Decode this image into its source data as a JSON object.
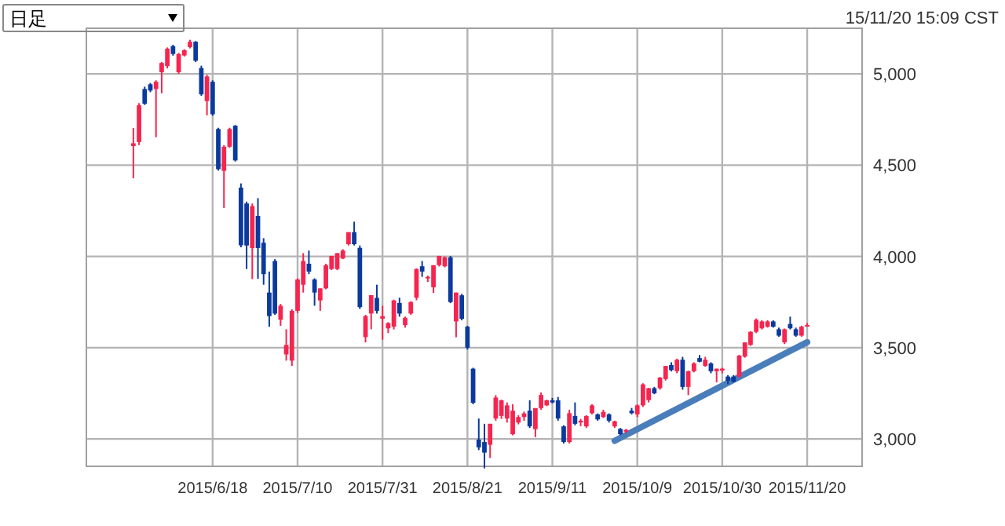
{
  "chart_data": {
    "type": "candlestick",
    "annotations": [
      "日足",
      "15/11/20 15:09 CST"
    ],
    "categories": [
      null,
      null,
      null,
      null,
      null,
      null,
      null,
      null,
      null,
      null,
      null,
      null,
      null,
      null,
      "2015/6/18",
      null,
      null,
      null,
      null,
      null,
      null,
      null,
      null,
      null,
      null,
      null,
      null,
      null,
      null,
      "2015/7/10",
      null,
      null,
      null,
      null,
      null,
      null,
      null,
      null,
      null,
      null,
      null,
      null,
      null,
      null,
      "2015/7/31",
      null,
      null,
      null,
      null,
      null,
      null,
      null,
      null,
      null,
      null,
      null,
      null,
      null,
      null,
      "2015/8/21",
      null,
      null,
      null,
      null,
      null,
      null,
      null,
      null,
      null,
      null,
      null,
      null,
      null,
      null,
      "2015/9/11",
      null,
      null,
      null,
      null,
      null,
      null,
      null,
      null,
      null,
      null,
      null,
      null,
      null,
      null,
      "2015/10/9",
      null,
      null,
      null,
      null,
      null,
      null,
      null,
      null,
      null,
      null,
      null,
      null,
      null,
      null,
      "2015/10/30",
      null,
      null,
      null,
      null,
      null,
      null,
      null,
      null,
      null,
      null,
      null,
      null,
      null,
      null,
      "2015/11/20"
    ],
    "ohlc": [
      [
        4605,
        4704,
        4428,
        4620
      ],
      [
        4627,
        4840,
        4610,
        4828
      ],
      [
        4917,
        4930,
        4830,
        4836
      ],
      [
        4943,
        4950,
        4900,
        4909
      ],
      [
        4917,
        4965,
        4653,
        4957
      ],
      [
        5009,
        5065,
        4894,
        5060
      ],
      [
        5043,
        5145,
        5030,
        5138
      ],
      [
        5152,
        5160,
        5100,
        5109
      ],
      [
        5009,
        5115,
        5000,
        5109
      ],
      [
        5101,
        5135,
        5095,
        5130
      ],
      [
        5147,
        5187,
        5140,
        5176
      ],
      [
        5176,
        5180,
        5065,
        5072
      ],
      [
        5032,
        5045,
        4880,
        4888
      ],
      [
        4851,
        4995,
        4773,
        4986
      ],
      [
        4957,
        4965,
        4770,
        4779
      ],
      [
        4698,
        4705,
        4470,
        4478
      ],
      [
        4469,
        4610,
        4265,
        4601
      ],
      [
        4601,
        4705,
        4595,
        4698
      ],
      [
        4716,
        4720,
        4520,
        4526
      ],
      [
        4377,
        4400,
        4050,
        4061
      ],
      [
        4290,
        4300,
        3931,
        4060
      ],
      [
        4046,
        4290,
        3876,
        4276
      ],
      [
        4222,
        4319,
        3877,
        4046
      ],
      [
        4075,
        4100,
        3845,
        3903
      ],
      [
        3802,
        3917,
        3615,
        3673
      ],
      [
        3975,
        3985,
        3680,
        3687
      ],
      [
        3653,
        3740,
        3620,
        3730
      ],
      [
        3463,
        3601,
        3429,
        3515
      ],
      [
        3429,
        3710,
        3400,
        3702
      ],
      [
        3702,
        3880,
        3690,
        3874
      ],
      [
        3845,
        4018,
        3802,
        3975
      ],
      [
        3960,
        4032,
        3903,
        3917
      ],
      [
        3874,
        3880,
        3730,
        3802
      ],
      [
        3759,
        3825,
        3702,
        3825
      ],
      [
        3825,
        3960,
        3820,
        3952
      ],
      [
        3931,
        4003,
        3925,
        4003
      ],
      [
        3931,
        4018,
        3925,
        4018
      ],
      [
        3989,
        4040,
        3985,
        4032
      ],
      [
        4067,
        4133,
        4060,
        4133
      ],
      [
        4133,
        4190,
        4060,
        4067
      ],
      [
        4047,
        4060,
        3712,
        3722
      ],
      [
        3558,
        3680,
        3529,
        3673
      ],
      [
        3687,
        3788,
        3601,
        3788
      ],
      [
        3773,
        3845,
        3687,
        3702
      ],
      [
        3659,
        3730,
        3544,
        3673
      ],
      [
        3606,
        3640,
        3580,
        3635
      ],
      [
        3615,
        3763,
        3600,
        3759
      ],
      [
        3745,
        3774,
        3670,
        3687
      ],
      [
        3624,
        3670,
        3610,
        3664
      ],
      [
        3687,
        3755,
        3680,
        3750
      ],
      [
        3774,
        3935,
        3760,
        3931
      ],
      [
        3946,
        3975,
        3888,
        3917
      ],
      [
        3880,
        3895,
        3860,
        3888
      ],
      [
        3831,
        3952,
        3800,
        3952
      ],
      [
        3952,
        4003,
        3945,
        4003
      ],
      [
        3946,
        4000,
        3940,
        3995
      ],
      [
        3995,
        4003,
        3744,
        3750
      ],
      [
        3644,
        3802,
        3557,
        3802
      ],
      [
        3787,
        3795,
        3650,
        3658
      ],
      [
        3615,
        3620,
        3490,
        3500
      ],
      [
        3385,
        3390,
        3190,
        3198
      ],
      [
        2997,
        3112,
        2939,
        2954
      ],
      [
        2983,
        3083,
        2839,
        2925
      ],
      [
        2968,
        3083,
        2896,
        3083
      ],
      [
        3112,
        3240,
        3100,
        3227
      ],
      [
        3126,
        3215,
        3110,
        3212
      ],
      [
        3112,
        3200,
        3090,
        3184
      ],
      [
        3026,
        3190,
        3020,
        3155
      ],
      [
        3090,
        3130,
        3080,
        3120
      ],
      [
        3120,
        3150,
        3100,
        3140
      ],
      [
        3155,
        3212,
        3060,
        3069
      ],
      [
        3054,
        3169,
        3010,
        3169
      ],
      [
        3169,
        3255,
        3160,
        3241
      ],
      [
        3184,
        3215,
        3180,
        3212
      ],
      [
        3212,
        3225,
        3195,
        3200
      ],
      [
        3212,
        3230,
        3100,
        3112
      ],
      [
        3069,
        3075,
        2975,
        2983
      ],
      [
        2983,
        3160,
        2975,
        3141
      ],
      [
        3126,
        3200,
        3075,
        3083
      ],
      [
        3090,
        3110,
        3070,
        3100
      ],
      [
        3069,
        3130,
        3060,
        3126
      ],
      [
        3141,
        3190,
        3135,
        3184
      ],
      [
        3135,
        3140,
        3100,
        3107
      ],
      [
        3120,
        3160,
        3115,
        3148
      ],
      [
        3135,
        3140,
        3090,
        3100
      ],
      [
        3069,
        3100,
        3060,
        3097
      ],
      [
        3055,
        3060,
        3020,
        3026
      ],
      [
        3040,
        3055,
        3030,
        3050
      ],
      [
        3155,
        3170,
        3135,
        3141
      ],
      [
        3135,
        3190,
        3120,
        3184
      ],
      [
        3184,
        3305,
        3175,
        3299
      ],
      [
        3213,
        3280,
        3200,
        3278
      ],
      [
        3278,
        3285,
        3245,
        3250
      ],
      [
        3278,
        3340,
        3270,
        3336
      ],
      [
        3328,
        3400,
        3320,
        3400
      ],
      [
        3405,
        3420,
        3370,
        3377
      ],
      [
        3371,
        3440,
        3360,
        3434
      ],
      [
        3434,
        3450,
        3270,
        3285
      ],
      [
        3285,
        3375,
        3240,
        3371
      ],
      [
        3371,
        3420,
        3365,
        3414
      ],
      [
        3443,
        3460,
        3420,
        3423
      ],
      [
        3400,
        3450,
        3395,
        3434
      ],
      [
        3414,
        3420,
        3360,
        3371
      ],
      [
        3371,
        3385,
        3310,
        3385
      ],
      [
        3375,
        3390,
        3360,
        3385
      ],
      [
        3342,
        3350,
        3300,
        3319
      ],
      [
        3342,
        3350,
        3310,
        3314
      ],
      [
        3342,
        3460,
        3335,
        3457
      ],
      [
        3451,
        3530,
        3445,
        3529
      ],
      [
        3515,
        3590,
        3510,
        3587
      ],
      [
        3587,
        3660,
        3580,
        3653
      ],
      [
        3606,
        3650,
        3600,
        3644
      ],
      [
        3615,
        3650,
        3610,
        3644
      ],
      [
        3644,
        3650,
        3610,
        3615
      ],
      [
        3601,
        3610,
        3560,
        3566
      ],
      [
        3529,
        3605,
        3520,
        3601
      ],
      [
        3630,
        3670,
        3600,
        3606
      ],
      [
        3601,
        3610,
        3560,
        3566
      ],
      [
        3566,
        3620,
        3560,
        3615
      ],
      [
        3620,
        3635,
        3615,
        3624
      ]
    ],
    "colors": [
      "#f5254f",
      "#f5254f",
      "#0a3a9e",
      "#0a3a9e",
      "#f5254f",
      "#f5254f",
      "#f5254f",
      "#0a3a9e",
      "#f5254f",
      "#f5254f",
      "#f5254f",
      "#0a3a9e",
      "#0a3a9e",
      "#f5254f",
      "#0a3a9e",
      "#0a3a9e",
      "#f5254f",
      "#f5254f",
      "#0a3a9e",
      "#0a3a9e",
      "#0a3a9e",
      "#f5254f",
      "#0a3a9e",
      "#0a3a9e",
      "#0a3a9e",
      "#0a3a9e",
      "#f5254f",
      "#f5254f",
      "#f5254f",
      "#f5254f",
      "#f5254f",
      "#0a3a9e",
      "#0a3a9e",
      "#f5254f",
      "#f5254f",
      "#f5254f",
      "#f5254f",
      "#f5254f",
      "#f5254f",
      "#0a3a9e",
      "#0a3a9e",
      "#f5254f",
      "#f5254f",
      "#0a3a9e",
      "#f5254f",
      "#f5254f",
      "#f5254f",
      "#0a3a9e",
      "#f5254f",
      "#f5254f",
      "#f5254f",
      "#0a3a9e",
      "#f5254f",
      "#f5254f",
      "#f5254f",
      "#f5254f",
      "#0a3a9e",
      "#f5254f",
      "#0a3a9e",
      "#0a3a9e",
      "#0a3a9e",
      "#0a3a9e",
      "#0a3a9e",
      "#f5254f",
      "#f5254f",
      "#f5254f",
      "#f5254f",
      "#f5254f",
      "#f5254f",
      "#f5254f",
      "#0a3a9e",
      "#f5254f",
      "#f5254f",
      "#f5254f",
      "#0a3a9e",
      "#0a3a9e",
      "#0a3a9e",
      "#f5254f",
      "#0a3a9e",
      "#f5254f",
      "#f5254f",
      "#f5254f",
      "#0a3a9e",
      "#f5254f",
      "#0a3a9e",
      "#f5254f",
      "#0a3a9e",
      "#f5254f",
      "#0a3a9e",
      "#f5254f",
      "#f5254f",
      "#f5254f",
      "#0a3a9e",
      "#f5254f",
      "#f5254f",
      "#0a3a9e",
      "#f5254f",
      "#0a3a9e",
      "#f5254f",
      "#f5254f",
      "#0a3a9e",
      "#f5254f",
      "#0a3a9e",
      "#f5254f",
      "#f5254f",
      "#0a3a9e",
      "#0a3a9e",
      "#f5254f",
      "#f5254f",
      "#f5254f",
      "#f5254f",
      "#f5254f",
      "#f5254f",
      "#0a3a9e",
      "#0a3a9e",
      "#f5254f",
      "#0a3a9e",
      "#0a3a9e",
      "#f5254f",
      "#f5254f"
    ],
    "series": [
      {
        "type": "line",
        "color": "#4a7ebb",
        "values": [
          null,
          null,
          null,
          null,
          null,
          null,
          null,
          null,
          null,
          null,
          null,
          null,
          null,
          null,
          null,
          null,
          null,
          null,
          null,
          null,
          null,
          null,
          null,
          null,
          null,
          null,
          null,
          null,
          null,
          null,
          null,
          null,
          null,
          null,
          null,
          null,
          null,
          null,
          null,
          null,
          null,
          null,
          null,
          null,
          null,
          null,
          null,
          null,
          null,
          null,
          null,
          null,
          null,
          null,
          null,
          null,
          null,
          null,
          null,
          null,
          null,
          null,
          null,
          null,
          null,
          null,
          null,
          null,
          null,
          null,
          null,
          null,
          null,
          null,
          null,
          null,
          null,
          null,
          null,
          null,
          null,
          null,
          null,
          null,
          null,
          2990,
          null,
          null,
          null,
          null,
          null,
          null,
          null,
          null,
          null,
          null,
          null,
          null,
          null,
          null,
          null,
          null,
          null,
          null,
          null,
          null,
          null,
          null,
          null,
          null,
          null,
          null,
          null,
          null,
          null,
          null,
          null,
          null,
          null,
          3530
        ]
      }
    ],
    "ylim": [
      2850,
      5250
    ],
    "yticks": [
      {
        "value": 3000,
        "label": "3,000"
      },
      {
        "value": 3500,
        "label": "3,500"
      },
      {
        "value": 4000,
        "label": "4,000"
      },
      {
        "value": 4500,
        "label": "4,500"
      },
      {
        "value": 5000,
        "label": "5,000"
      }
    ],
    "grid": true
  }
}
